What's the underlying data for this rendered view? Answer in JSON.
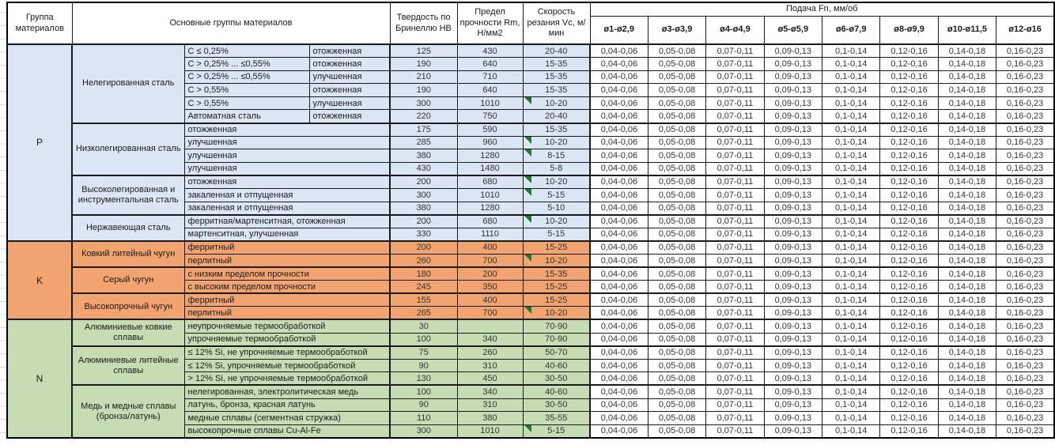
{
  "header": {
    "col_group": "Группа материалов",
    "col_main": "Основные группы материалов",
    "col_hb": "Твердость по Бринеллю HB",
    "col_rm": "Предел прочности Rm, Н/мм2",
    "col_vc": "Скорость резания Vc, м/мин",
    "col_feed": "Подача Fn, мм/об",
    "diameters": [
      "ø1-ø2,9",
      "ø3-ø3,9",
      "ø4-ø4,9",
      "ø5-ø5,9",
      "ø6-ø7,9",
      "ø8-ø9,9",
      "ø10-ø11,5",
      "ø12-ø16"
    ]
  },
  "feed_values": [
    "0,04-0,06",
    "0,05-0,08",
    "0,07-0,11",
    "0,09-0,13",
    "0,1-0,14",
    "0,12-0,16",
    "0,14-0,18",
    "0,16-0,23"
  ],
  "colors": {
    "group_p": "#DAE6F3",
    "group_k": "#F2A470",
    "group_n": "#C6DDB3",
    "marker": "#1E7B2D",
    "border": "#1a1a1a"
  },
  "groups": [
    {
      "code": "P",
      "color_key": "group_p",
      "subgroups": [
        {
          "name": "Нелегированная сталь",
          "rows": [
            {
              "detail": "C ≤ 0,25%",
              "state": "отожженная",
              "hb": "125",
              "rm": "430",
              "vc": "20-40",
              "marker": false
            },
            {
              "detail": "C > 0,25% ... ≤0,55%",
              "state": "отожженная",
              "hb": "190",
              "rm": "640",
              "vc": "15-35",
              "marker": false
            },
            {
              "detail": "C > 0,25% ... ≤0,55%",
              "state": "улучшенная",
              "hb": "210",
              "rm": "710",
              "vc": "15-35",
              "marker": false
            },
            {
              "detail": "C > 0,55%",
              "state": "отожженная",
              "hb": "190",
              "rm": "640",
              "vc": "15-35",
              "marker": false
            },
            {
              "detail": "C > 0,55%",
              "state": "улучшенная",
              "hb": "300",
              "rm": "1010",
              "vc": "10-20",
              "marker": true
            },
            {
              "detail": "Автоматная сталь",
              "state": "отожженная",
              "hb": "220",
              "rm": "750",
              "vc": "20-40",
              "marker": false
            }
          ]
        },
        {
          "name": "Низколегированная сталь",
          "rows": [
            {
              "detail": "отожженная",
              "hb": "175",
              "rm": "590",
              "vc": "15-35",
              "marker": false
            },
            {
              "detail": "улучшенная",
              "hb": "285",
              "rm": "960",
              "vc": "10-20",
              "marker": true
            },
            {
              "detail": "улучшенная",
              "hb": "380",
              "rm": "1280",
              "vc": "8-15",
              "marker": true
            },
            {
              "detail": "улучшенная",
              "hb": "430",
              "rm": "1480",
              "vc": "5-8",
              "marker": false
            }
          ]
        },
        {
          "name": "Высоколегированная и инструментальная сталь",
          "rows": [
            {
              "detail": "отожженная",
              "hb": "200",
              "rm": "680",
              "vc": "10-20",
              "marker": true
            },
            {
              "detail": "закаленная и отпущенная",
              "hb": "300",
              "rm": "1010",
              "vc": "5-15",
              "marker": true
            },
            {
              "detail": "закаленная и отпущенная",
              "hb": "380",
              "rm": "1280",
              "vc": "5-10",
              "marker": false
            }
          ]
        },
        {
          "name": "Нержавеющая сталь",
          "rows": [
            {
              "detail": "ферритная/мартенситная, отожженная",
              "hb": "200",
              "rm": "680",
              "vc": "10-20",
              "marker": true
            },
            {
              "detail": "мартенситная, улучшенная",
              "hb": "330",
              "rm": "1110",
              "vc": "5-15",
              "marker": false
            }
          ]
        }
      ]
    },
    {
      "code": "K",
      "color_key": "group_k",
      "subgroups": [
        {
          "name": "Ковкий литейный чугун",
          "rows": [
            {
              "detail": "ферритный",
              "hb": "200",
              "rm": "400",
              "vc": "15-25",
              "marker": false
            },
            {
              "detail": "перлитный",
              "hb": "260",
              "rm": "700",
              "vc": "10-20",
              "marker": true
            }
          ]
        },
        {
          "name": "Серый чугун",
          "rows": [
            {
              "detail": "с низким пределом прочности",
              "hb": "180",
              "rm": "200",
              "vc": "15-35",
              "marker": false
            },
            {
              "detail": "с высоким пределом прочности",
              "hb": "245",
              "rm": "350",
              "vc": "15-25",
              "marker": false
            }
          ]
        },
        {
          "name": "Высокопрочный чугун",
          "rows": [
            {
              "detail": "ферритный",
              "hb": "155",
              "rm": "400",
              "vc": "15-25",
              "marker": false
            },
            {
              "detail": "перлитный",
              "hb": "265",
              "rm": "700",
              "vc": "10-20",
              "marker": true
            }
          ]
        }
      ]
    },
    {
      "code": "N",
      "color_key": "group_n",
      "subgroups": [
        {
          "name": "Алюминиевые ковкие сплавы",
          "rows": [
            {
              "detail": "неупрочняемые термообработкой",
              "hb": "30",
              "rm": "",
              "vc": "70-90",
              "marker": false
            },
            {
              "detail": "упрочняемые термообработкой",
              "hb": "100",
              "rm": "340",
              "vc": "70-90",
              "marker": false
            }
          ]
        },
        {
          "name": "Алюминиевые литейные сплавы",
          "rows": [
            {
              "detail": "≤ 12% Si, не упрочняемые термообработкой",
              "hb": "75",
              "rm": "260",
              "vc": "50-70",
              "marker": false
            },
            {
              "detail": "≤ 12% Si, упрочняемые термообработкой",
              "hb": "90",
              "rm": "310",
              "vc": "40-60",
              "marker": false
            },
            {
              "detail": "> 12% Si, не упрочняемые термообработкой",
              "hb": "130",
              "rm": "450",
              "vc": "30-50",
              "marker": false
            }
          ]
        },
        {
          "name": "Медь и медные сплавы (бронза/латунь)",
          "rows": [
            {
              "detail": "нелегированная, электролитическая медь",
              "hb": "100",
              "rm": "340",
              "vc": "40-60",
              "marker": false
            },
            {
              "detail": "латунь, бронза, красная латунь",
              "hb": "90",
              "rm": "310",
              "vc": "30-50",
              "marker": false
            },
            {
              "detail": "медные сплавы (сегментная стружка)",
              "hb": "110",
              "rm": "380",
              "vc": "35-55",
              "marker": false
            },
            {
              "detail": "высокопрочные сплавы Cu-Al-Fe",
              "hb": "300",
              "rm": "1010",
              "vc": "5-15",
              "marker": true
            }
          ]
        }
      ]
    }
  ]
}
